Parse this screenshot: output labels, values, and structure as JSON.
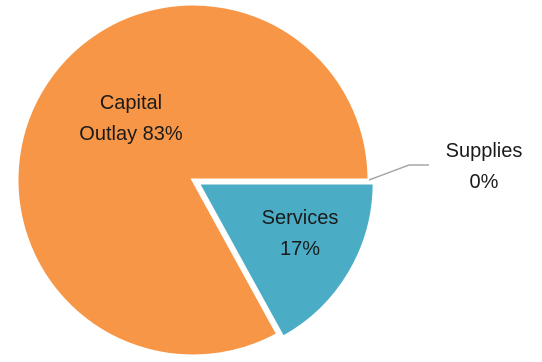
{
  "chart_data": {
    "type": "pie",
    "title": "",
    "slices": [
      {
        "name": "Capital Outlay",
        "value": 83,
        "label_line1": "Capital",
        "label_line2": "Outlay 83%",
        "color": "#F79646"
      },
      {
        "name": "Services",
        "value": 17,
        "label_line1": "Services",
        "label_line2": "17%",
        "color": "#4BACC6"
      },
      {
        "name": "Supplies",
        "value": 0,
        "label_line1": "Supplies",
        "label_line2": "0%",
        "color": "#8064A2"
      }
    ],
    "slice_border_color": "#ffffff",
    "leader_line_color": "#A6A6A6",
    "legend": "none"
  }
}
